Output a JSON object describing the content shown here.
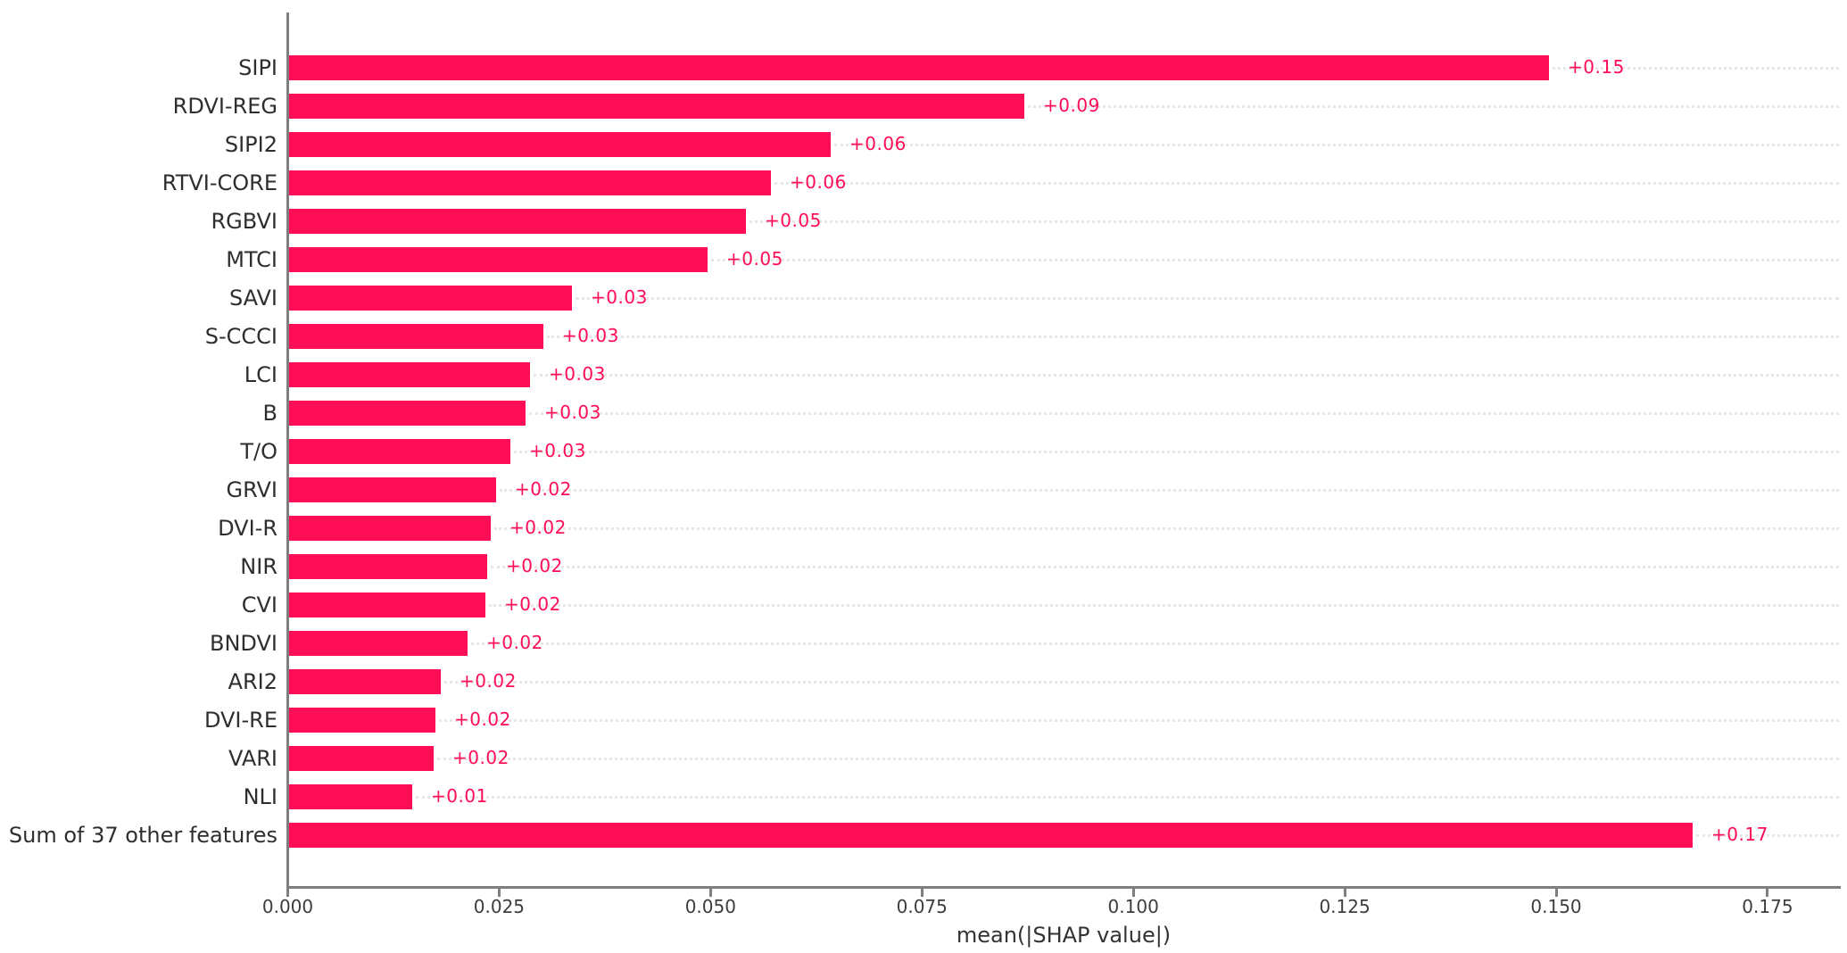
{
  "chart_data": {
    "type": "bar",
    "orientation": "horizontal",
    "title": "",
    "xlabel": "mean(|SHAP value|)",
    "ylabel": "",
    "xlim": [
      0,
      0.1835
    ],
    "grid": "dotted horizontal leader line per row, no vertical gridlines",
    "legend_position": "none",
    "bar_color": "#ff0d57",
    "value_label_color": "#ff0d57",
    "axis_color": "#7f7f7f",
    "leader_line_color": "#e7e7e7",
    "x_ticks": [
      0.0,
      0.025,
      0.05,
      0.075,
      0.1,
      0.125,
      0.15,
      0.175
    ],
    "x_tick_labels": [
      "0.000",
      "0.025",
      "0.050",
      "0.075",
      "0.100",
      "0.125",
      "0.150",
      "0.175"
    ],
    "categories": [
      "SIPI",
      "RDVI-REG",
      "SIPI2",
      "RTVI-CORE",
      "RGBVI",
      "MTCI",
      "SAVI",
      "S-CCCI",
      "LCI",
      "B",
      "T/O",
      "GRVI",
      "DVI-R",
      "NIR",
      "CVI",
      "BNDVI",
      "ARI2",
      "DVI-RE",
      "VARI",
      "NLI",
      "Sum of 37 other features"
    ],
    "values": [
      0.149,
      0.087,
      0.064,
      0.057,
      0.054,
      0.0495,
      0.0335,
      0.0301,
      0.0285,
      0.028,
      0.0262,
      0.0245,
      0.0238,
      0.0234,
      0.0232,
      0.0211,
      0.0179,
      0.0173,
      0.0171,
      0.0146,
      0.166
    ],
    "value_labels": [
      "+0.15",
      "+0.09",
      "+0.06",
      "+0.06",
      "+0.05",
      "+0.05",
      "+0.03",
      "+0.03",
      "+0.03",
      "+0.03",
      "+0.03",
      "+0.02",
      "+0.02",
      "+0.02",
      "+0.02",
      "+0.02",
      "+0.02",
      "+0.02",
      "+0.02",
      "+0.01",
      "+0.17"
    ]
  }
}
